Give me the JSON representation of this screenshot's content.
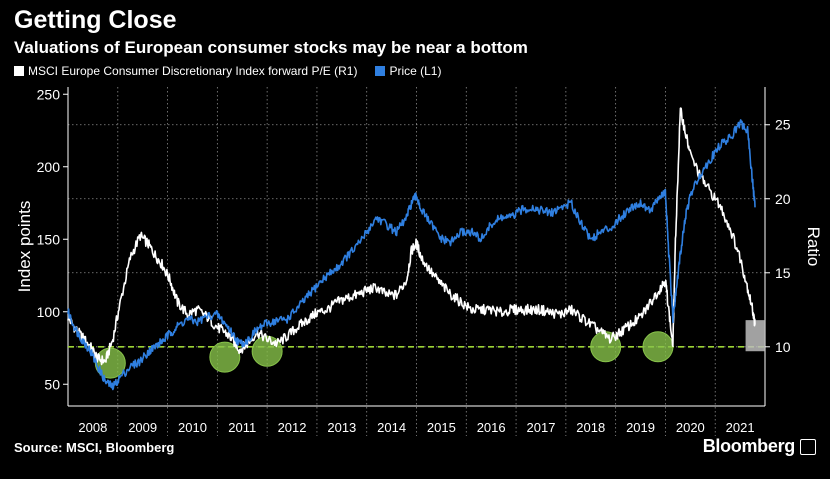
{
  "title": "Getting Close",
  "subtitle": "Valuations of European consumer stocks may be near a bottom",
  "source": "Source: MSCI, Bloomberg",
  "brand": "Bloomberg",
  "colors": {
    "background": "#000000",
    "pe_line": "#ffffff",
    "price_line": "#2f7fe0",
    "reference_line": "#9bd433",
    "highlight_fill": "#87c24a",
    "latest_box": "#bdbdbd",
    "grid": "#8a8a8a"
  },
  "chart_data": {
    "type": "line",
    "xlabel": "",
    "ylabel_left": "Index points",
    "ylabel_right": "Ratio",
    "x_ticks": [
      "2008",
      "2009",
      "2010",
      "2011",
      "2012",
      "2013",
      "2014",
      "2015",
      "2016",
      "2017",
      "2018",
      "2019",
      "2020",
      "2021"
    ],
    "x_range": [
      2008.0,
      2022.0
    ],
    "y_left_range": [
      35,
      255
    ],
    "y_left_ticks": [
      50,
      100,
      150,
      200,
      250
    ],
    "y_right_range": [
      6.0,
      27.55
    ],
    "y_right_ticks": [
      10,
      15,
      20,
      25
    ],
    "grid": true,
    "legend_position": "top-left",
    "reference_line": {
      "axis": "right",
      "value": 10
    },
    "series": [
      {
        "name": "MSCI Europe Consumer Discretionary Index forward P/E (R1)",
        "axis": "right",
        "x": [
          2008.0,
          2008.15,
          2008.3,
          2008.45,
          2008.6,
          2008.75,
          2008.9,
          2009.05,
          2009.25,
          2009.45,
          2009.6,
          2009.75,
          2009.9,
          2010.05,
          2010.2,
          2010.4,
          2010.6,
          2010.8,
          2011.0,
          2011.15,
          2011.3,
          2011.45,
          2011.6,
          2011.8,
          2012.0,
          2012.2,
          2012.4,
          2012.6,
          2012.8,
          2013.0,
          2013.2,
          2013.4,
          2013.6,
          2013.8,
          2014.0,
          2014.2,
          2014.4,
          2014.6,
          2014.8,
          2014.9,
          2015.0,
          2015.1,
          2015.3,
          2015.5,
          2015.7,
          2015.9,
          2016.1,
          2016.3,
          2016.5,
          2016.7,
          2016.9,
          2017.1,
          2017.3,
          2017.5,
          2017.7,
          2017.9,
          2018.1,
          2018.3,
          2018.5,
          2018.7,
          2018.9,
          2019.1,
          2019.3,
          2019.5,
          2019.7,
          2019.9,
          2020.0,
          2020.05,
          2020.15,
          2020.2,
          2020.3,
          2020.4,
          2020.5,
          2020.7,
          2020.9,
          2021.1,
          2021.3,
          2021.5,
          2021.65,
          2021.75,
          2021.8
        ],
        "values": [
          12.0,
          11.2,
          10.6,
          10.0,
          9.2,
          9.0,
          10.5,
          13.0,
          16.0,
          17.5,
          17.0,
          16.2,
          15.5,
          14.5,
          13.0,
          12.2,
          12.5,
          12.0,
          11.3,
          11.0,
          10.5,
          9.8,
          10.2,
          11.0,
          10.5,
          10.2,
          10.7,
          11.3,
          11.8,
          12.3,
          12.5,
          13.0,
          13.3,
          13.5,
          13.8,
          14.0,
          13.5,
          13.5,
          14.5,
          16.5,
          17.0,
          16.0,
          15.0,
          14.2,
          13.5,
          13.0,
          12.5,
          12.5,
          12.5,
          12.3,
          12.5,
          12.5,
          12.5,
          12.5,
          12.3,
          12.2,
          12.5,
          12.0,
          11.5,
          11.0,
          10.5,
          11.0,
          11.5,
          12.0,
          13.0,
          14.0,
          14.5,
          13.0,
          10.0,
          17.0,
          26.0,
          24.5,
          23.0,
          21.5,
          20.5,
          19.5,
          18.0,
          16.0,
          14.0,
          12.5,
          11.5
        ]
      },
      {
        "name": "Price (L1)",
        "axis": "left",
        "x": [
          2008.0,
          2008.15,
          2008.3,
          2008.45,
          2008.6,
          2008.75,
          2008.9,
          2009.05,
          2009.25,
          2009.45,
          2009.6,
          2009.75,
          2009.9,
          2010.05,
          2010.2,
          2010.4,
          2010.6,
          2010.8,
          2011.0,
          2011.15,
          2011.3,
          2011.45,
          2011.6,
          2011.8,
          2012.0,
          2012.2,
          2012.4,
          2012.6,
          2012.8,
          2013.0,
          2013.2,
          2013.4,
          2013.6,
          2013.8,
          2014.0,
          2014.2,
          2014.4,
          2014.6,
          2014.8,
          2014.9,
          2015.0,
          2015.1,
          2015.3,
          2015.5,
          2015.7,
          2015.9,
          2016.1,
          2016.3,
          2016.5,
          2016.7,
          2016.9,
          2017.1,
          2017.3,
          2017.5,
          2017.7,
          2017.9,
          2018.1,
          2018.3,
          2018.5,
          2018.7,
          2018.9,
          2019.1,
          2019.3,
          2019.5,
          2019.7,
          2019.9,
          2020.0,
          2020.05,
          2020.15,
          2020.2,
          2020.3,
          2020.4,
          2020.5,
          2020.7,
          2020.9,
          2021.1,
          2021.3,
          2021.5,
          2021.65,
          2021.75,
          2021.8
        ],
        "values": [
          100,
          88,
          80,
          73,
          62,
          52,
          48,
          55,
          62,
          66,
          72,
          76,
          80,
          85,
          90,
          95,
          93,
          97,
          98,
          92,
          85,
          78,
          80,
          88,
          92,
          94,
          95,
          102,
          110,
          118,
          125,
          130,
          138,
          145,
          155,
          165,
          160,
          155,
          165,
          175,
          180,
          170,
          160,
          150,
          148,
          155,
          155,
          150,
          160,
          165,
          165,
          170,
          172,
          170,
          168,
          172,
          175,
          162,
          150,
          155,
          158,
          165,
          172,
          175,
          170,
          180,
          182,
          150,
          95,
          110,
          140,
          165,
          180,
          195,
          205,
          215,
          220,
          230,
          225,
          190,
          172
        ]
      }
    ],
    "highlight_circles": [
      {
        "x": 2008.85,
        "y_right": 8.9
      },
      {
        "x": 2011.15,
        "y_right": 9.3
      },
      {
        "x": 2012.0,
        "y_right": 9.7
      },
      {
        "x": 2018.8,
        "y_right": 10.0
      },
      {
        "x": 2019.85,
        "y_right": 10.0
      }
    ],
    "latest_box": {
      "x": [
        2021.65,
        2021.8
      ],
      "y_right": [
        9.7,
        11.8
      ]
    }
  }
}
